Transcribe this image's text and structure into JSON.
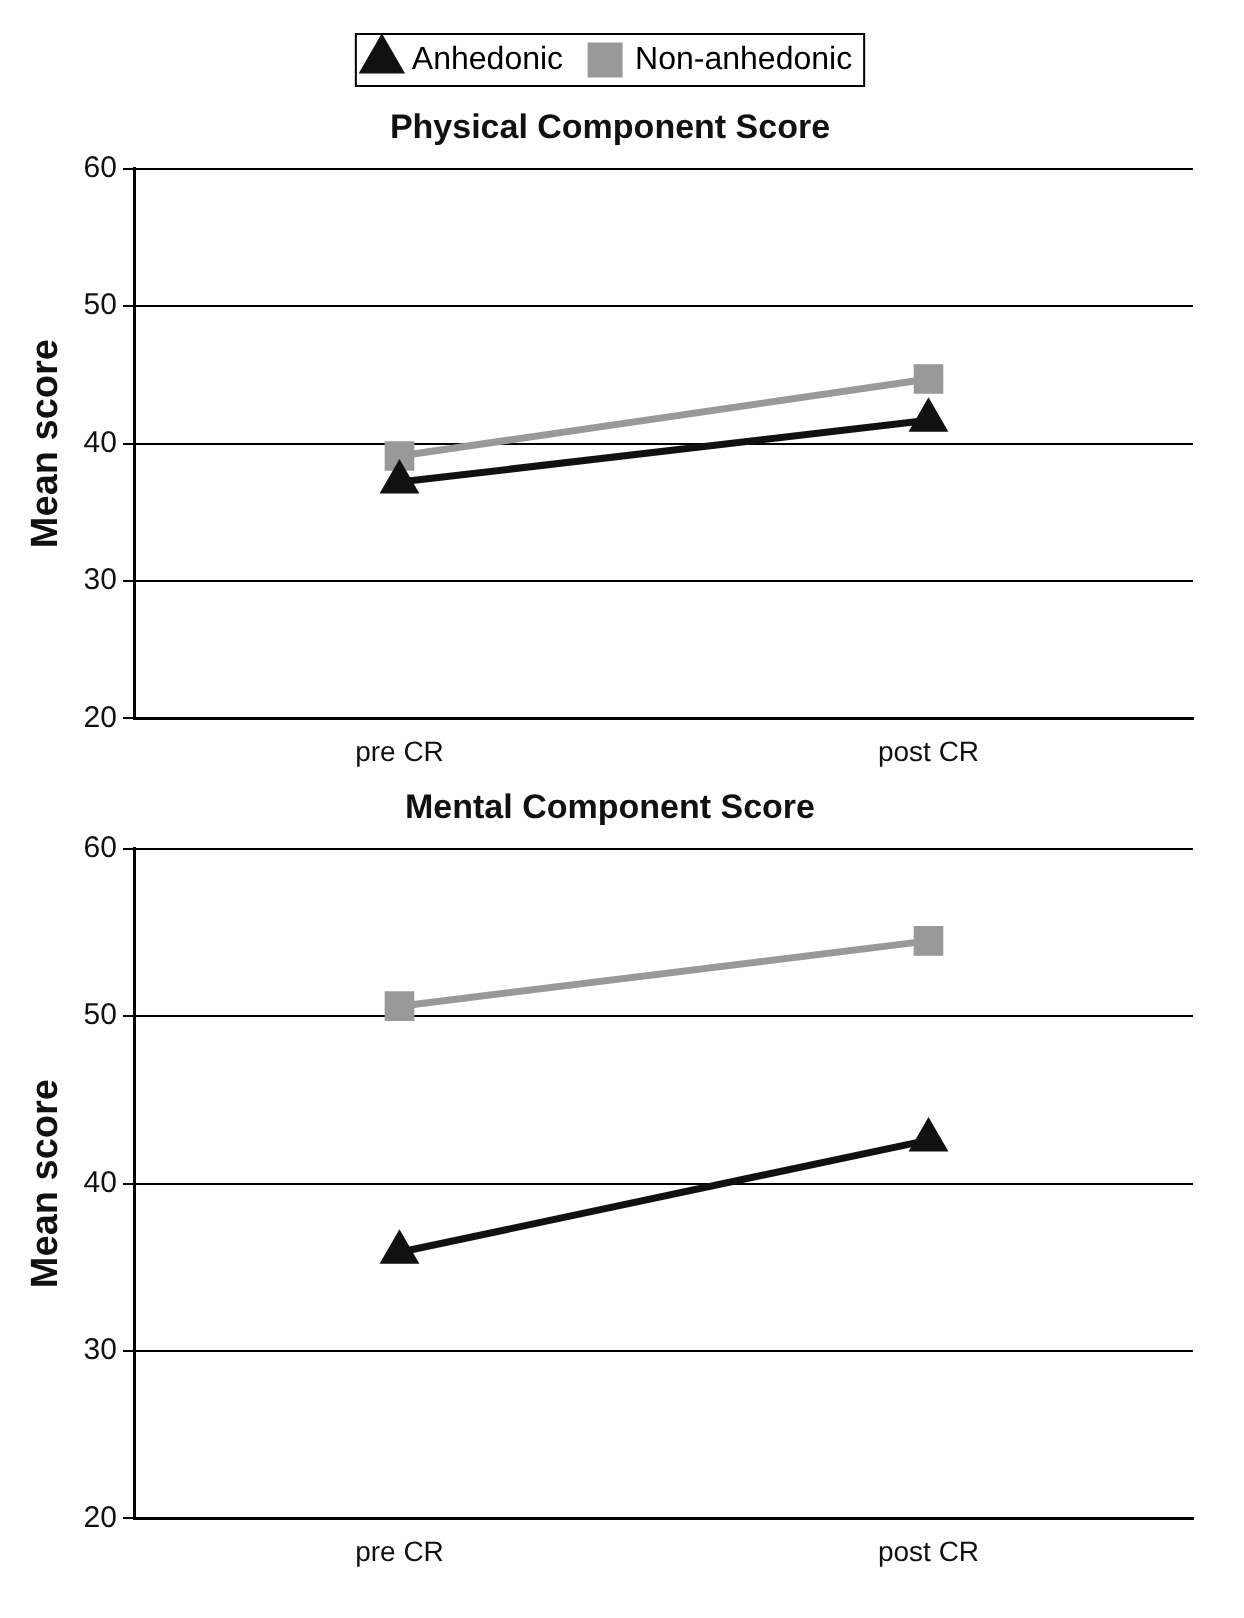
{
  "chart_data": [
    {
      "type": "line",
      "title": "Physical Component Score",
      "ylabel": "Mean score",
      "categories": [
        "pre CR",
        "post CR"
      ],
      "ylim": [
        20,
        60
      ],
      "yticks": [
        20,
        30,
        40,
        50,
        60
      ],
      "grid": "y",
      "legend": "top",
      "series": [
        {
          "name": "Anhedonic",
          "color": "#111111",
          "marker": "triangle",
          "values": [
            37.2,
            41.7
          ]
        },
        {
          "name": "Non-anhedonic",
          "color": "#999999",
          "marker": "square",
          "values": [
            39.1,
            44.7
          ]
        }
      ]
    },
    {
      "type": "line",
      "title": "Mental Component Score",
      "ylabel": "Mean score",
      "categories": [
        "pre CR",
        "post CR"
      ],
      "ylim": [
        20,
        60
      ],
      "yticks": [
        20,
        30,
        40,
        50,
        60
      ],
      "grid": "y",
      "series": [
        {
          "color": "#111111",
          "marker": "triangle",
          "values": [
            35.9,
            42.6
          ]
        },
        {
          "color": "#999999",
          "marker": "square",
          "values": [
            50.6,
            54.5
          ]
        }
      ]
    }
  ]
}
